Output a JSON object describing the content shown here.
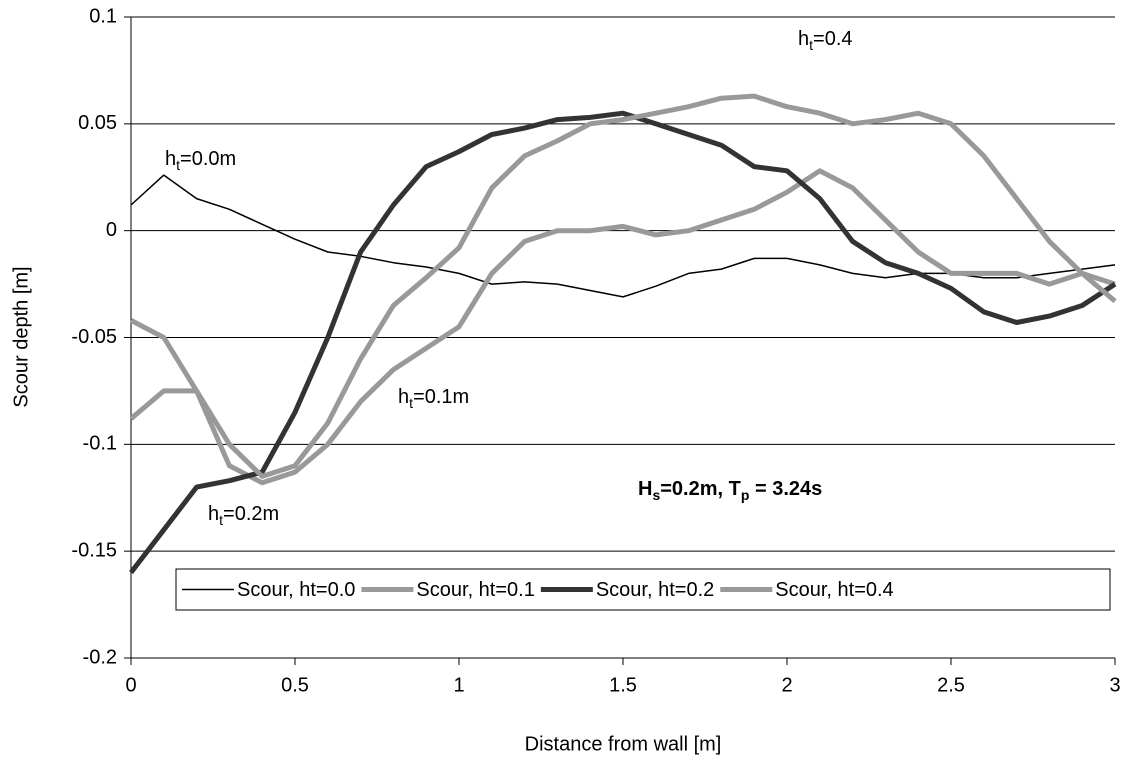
{
  "chart_data": {
    "type": "line",
    "y_label": "Scour depth [m]",
    "x_label": "Distance from wall [m]",
    "x": [
      0,
      0.1,
      0.2,
      0.3,
      0.4,
      0.5,
      0.6,
      0.7,
      0.8,
      0.9,
      1.0,
      1.1,
      1.2,
      1.3,
      1.4,
      1.5,
      1.6,
      1.7,
      1.8,
      1.9,
      2.0,
      2.1,
      2.2,
      2.3,
      2.4,
      2.5,
      2.6,
      2.7,
      2.8,
      2.9,
      3.0
    ],
    "series": [
      {
        "name": "Scour, ht=0.0",
        "color": "#000000",
        "width": 1.5,
        "values": [
          0.012,
          0.026,
          0.015,
          0.01,
          0.003,
          -0.004,
          -0.01,
          -0.012,
          -0.015,
          -0.017,
          -0.02,
          -0.025,
          -0.024,
          -0.025,
          -0.028,
          -0.031,
          -0.026,
          -0.02,
          -0.018,
          -0.013,
          -0.013,
          -0.016,
          -0.02,
          -0.022,
          -0.02,
          -0.02,
          -0.022,
          -0.022,
          -0.02,
          -0.018,
          -0.016
        ]
      },
      {
        "name": "Scour, ht=0.1",
        "color": "#999999",
        "width": 5,
        "values": [
          -0.088,
          -0.075,
          -0.075,
          -0.11,
          -0.118,
          -0.113,
          -0.1,
          -0.08,
          -0.065,
          -0.055,
          -0.045,
          -0.02,
          -0.005,
          0,
          0,
          0.002,
          -0.002,
          0,
          0.005,
          0.01,
          0.018,
          0.028,
          0.02,
          0.005,
          -0.01,
          -0.02,
          -0.02,
          -0.02,
          -0.025,
          -0.02,
          -0.025
        ]
      },
      {
        "name": "Scour, ht=0.2",
        "color": "#333333",
        "width": 5,
        "values": [
          -0.16,
          -0.14,
          -0.12,
          -0.117,
          -0.113,
          -0.085,
          -0.05,
          -0.01,
          0.012,
          0.03,
          0.037,
          0.045,
          0.048,
          0.052,
          0.053,
          0.055,
          0.05,
          0.045,
          0.04,
          0.03,
          0.028,
          0.015,
          -0.005,
          -0.015,
          -0.02,
          -0.027,
          -0.038,
          -0.043,
          -0.04,
          -0.035,
          -0.025
        ]
      },
      {
        "name": "Scour, ht=0.4",
        "color": "#999999",
        "width": 5,
        "values": [
          -0.042,
          -0.05,
          -0.075,
          -0.1,
          -0.115,
          -0.11,
          -0.09,
          -0.06,
          -0.035,
          -0.022,
          -0.008,
          0.02,
          0.035,
          0.042,
          0.05,
          0.052,
          0.055,
          0.058,
          0.062,
          0.063,
          0.058,
          0.055,
          0.05,
          0.052,
          0.055,
          0.05,
          0.035,
          0.015,
          -0.005,
          -0.02,
          -0.033
        ]
      }
    ],
    "xlim": [
      0,
      3
    ],
    "xticks": [
      0,
      0.5,
      1,
      1.5,
      2,
      2.5,
      3
    ],
    "ylim": [
      -0.2,
      0.1
    ],
    "yticks": [
      -0.2,
      -0.15,
      -0.1,
      -0.05,
      0,
      0.05,
      0.1
    ],
    "grid": true,
    "legend": "lower center",
    "annotations": [
      [
        "h",
        "t",
        "=0.0m"
      ],
      [
        "h",
        "t",
        "=0.4"
      ],
      [
        "h",
        "t",
        "=0.1m"
      ],
      [
        "h",
        "t",
        "=0.2m"
      ],
      [
        "H",
        "s",
        "=0.2m, T",
        "p",
        " = 3.24s"
      ]
    ]
  }
}
